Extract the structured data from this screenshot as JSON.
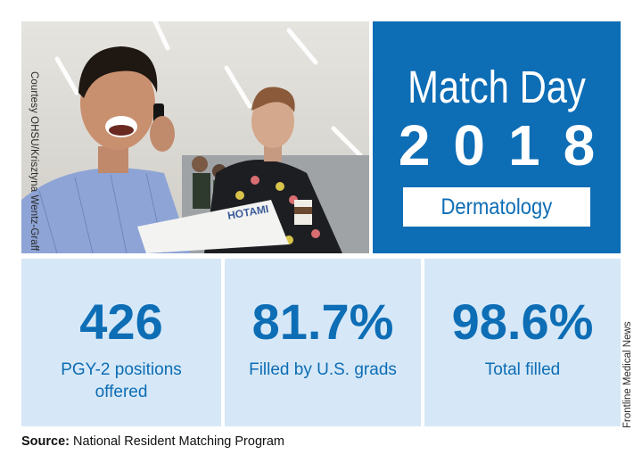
{
  "photo": {
    "credit": "Courtesy OHSU/Krisztyna Wentz-Graff",
    "paper_text": "HOTAMI"
  },
  "title": {
    "line1": "Match Day",
    "line2": "2018",
    "specialty": "Dermatology"
  },
  "stats": [
    {
      "value": "426",
      "label_line1": "PGY-2 positions",
      "label_line2": "offered"
    },
    {
      "value": "81.7%",
      "label_line1": "Filled by U.S. grads",
      "label_line2": ""
    },
    {
      "value": "98.6%",
      "label_line1": "Total filled",
      "label_line2": ""
    }
  ],
  "side_note": "Frontline Medical News",
  "source": {
    "label": "Source:",
    "text": "National Resident Matching Program"
  },
  "colors": {
    "brand_blue": "#0d6db5",
    "light_blue": "#d6e8f7"
  }
}
